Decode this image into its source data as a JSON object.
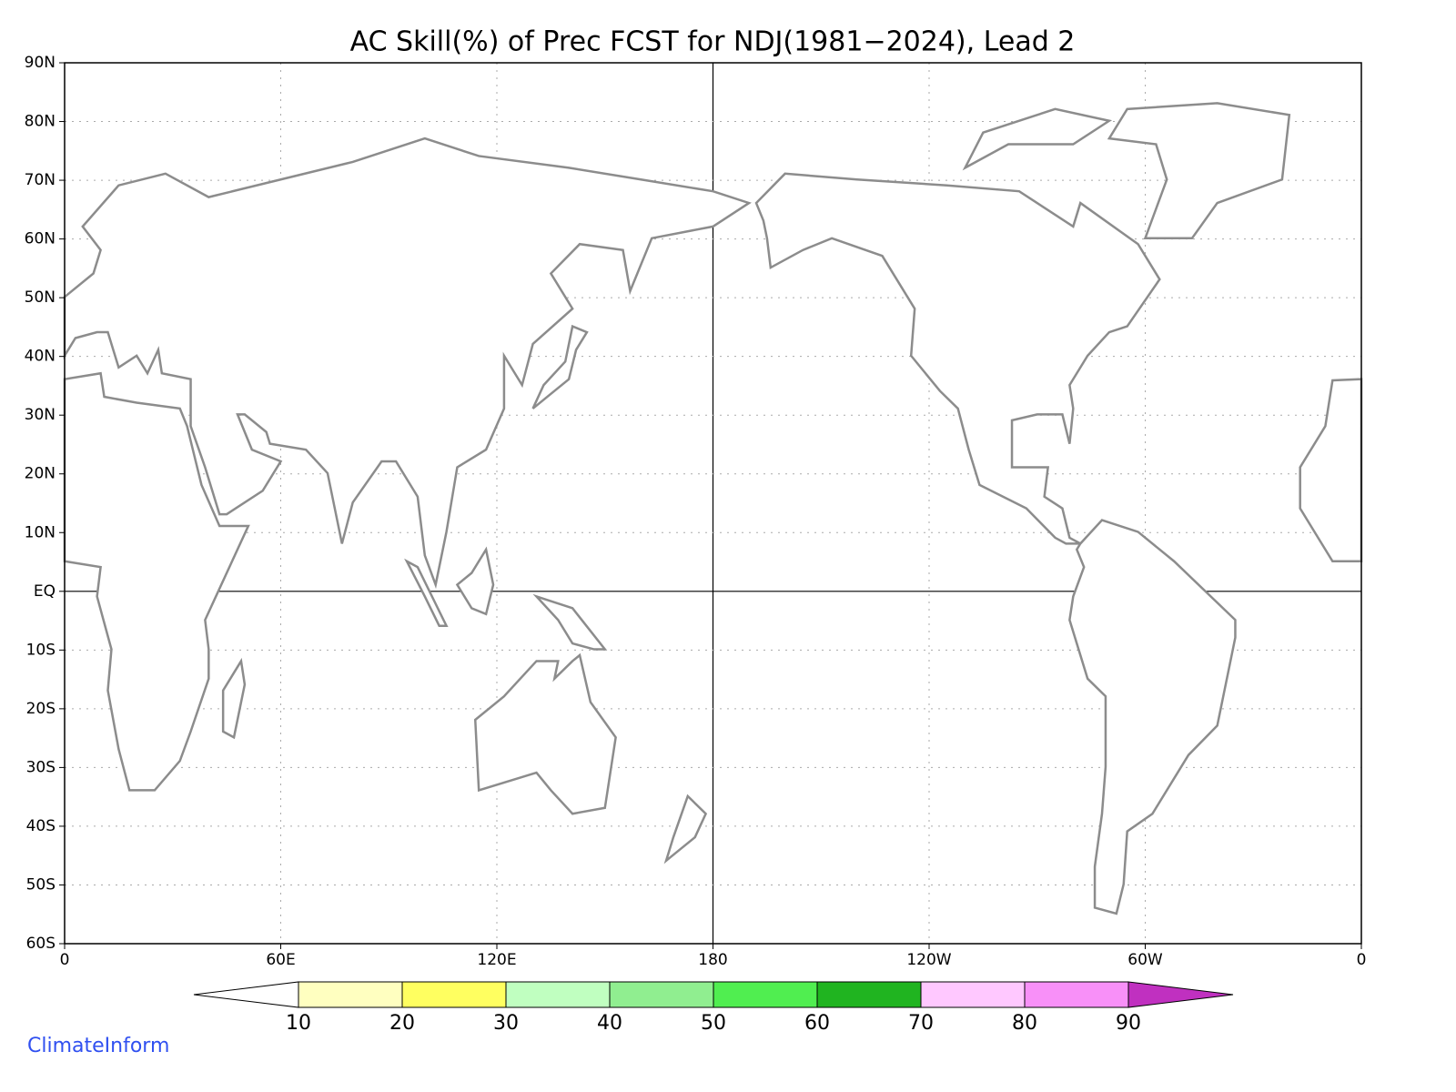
{
  "title": "AC Skill(%) of Prec FCST for NDJ(1981−2024), Lead 2",
  "map": {
    "lonlim": [
      0,
      360
    ],
    "latlim": [
      -60,
      90
    ],
    "lon_ticks": [
      {
        "value": 0,
        "label": "0"
      },
      {
        "value": 60,
        "label": "60E"
      },
      {
        "value": 120,
        "label": "120E"
      },
      {
        "value": 180,
        "label": "180"
      },
      {
        "value": 240,
        "label": "120W"
      },
      {
        "value": 300,
        "label": "60W"
      },
      {
        "value": 360,
        "label": "0"
      }
    ],
    "lat_ticks": [
      {
        "value": 90,
        "label": "90N"
      },
      {
        "value": 80,
        "label": "80N"
      },
      {
        "value": 70,
        "label": "70N"
      },
      {
        "value": 60,
        "label": "60N"
      },
      {
        "value": 50,
        "label": "50N"
      },
      {
        "value": 40,
        "label": "40N"
      },
      {
        "value": 30,
        "label": "30N"
      },
      {
        "value": 20,
        "label": "20N"
      },
      {
        "value": 10,
        "label": "10N"
      },
      {
        "value": 0,
        "label": "EQ"
      },
      {
        "value": -10,
        "label": "10S"
      },
      {
        "value": -20,
        "label": "20S"
      },
      {
        "value": -30,
        "label": "30S"
      },
      {
        "value": -40,
        "label": "40S"
      },
      {
        "value": -50,
        "label": "50S"
      },
      {
        "value": -60,
        "label": "60S"
      }
    ]
  },
  "colorbar": {
    "levels": [
      10,
      20,
      30,
      40,
      50,
      60,
      70,
      80,
      90
    ],
    "colors": [
      "#ffffff",
      "#ffffc0",
      "#ffff60",
      "#c0ffc0",
      "#90ee90",
      "#50ee50",
      "#20b420",
      "#ffc8ff",
      "#f890f8",
      "#c030c0"
    ]
  },
  "credit": "ClimateInform"
}
